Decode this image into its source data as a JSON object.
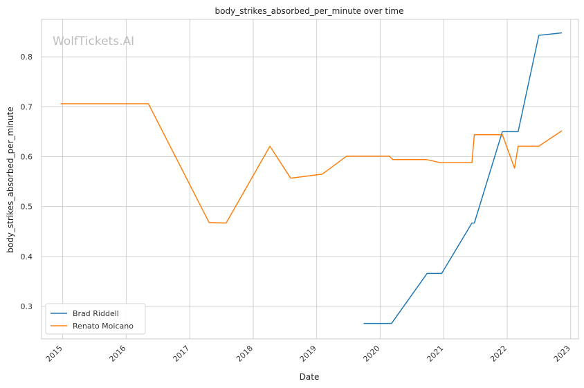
{
  "watermark": "WolfTickets.AI",
  "chart_data": {
    "type": "line",
    "title": "body_strikes_absorbed_per_minute over time",
    "xlabel": "Date",
    "ylabel": "body_strikes_absorbed_per_minute",
    "x_type": "date",
    "xlim": [
      "2014-09-01",
      "2023-02-15"
    ],
    "ylim": [
      0.235,
      0.875
    ],
    "x_ticks": [
      "2015-01-01",
      "2016-01-01",
      "2017-01-01",
      "2018-01-01",
      "2019-01-01",
      "2020-01-01",
      "2021-01-01",
      "2022-01-01",
      "2023-01-01"
    ],
    "x_tick_labels": [
      "2015",
      "2016",
      "2017",
      "2018",
      "2019",
      "2020",
      "2021",
      "2022",
      "2023"
    ],
    "y_ticks": [
      0.3,
      0.4,
      0.5,
      0.6,
      0.7,
      0.8
    ],
    "y_tick_labels": [
      "0.3",
      "0.4",
      "0.5",
      "0.6",
      "0.7",
      "0.8"
    ],
    "grid": true,
    "legend_position": "lower-left",
    "series": [
      {
        "name": "Brad Riddell",
        "color": "#1f77b4",
        "points": [
          {
            "x": "2019-09-28",
            "y": 0.266
          },
          {
            "x": "2020-03-07",
            "y": 0.266
          },
          {
            "x": "2020-09-27",
            "y": 0.366
          },
          {
            "x": "2020-12-20",
            "y": 0.366
          },
          {
            "x": "2021-06-12",
            "y": 0.467
          },
          {
            "x": "2021-06-26",
            "y": 0.467
          },
          {
            "x": "2021-12-04",
            "y": 0.65
          },
          {
            "x": "2022-03-05",
            "y": 0.65
          },
          {
            "x": "2022-07-02",
            "y": 0.843
          },
          {
            "x": "2022-11-12",
            "y": 0.848
          }
        ]
      },
      {
        "name": "Renato Moicano",
        "color": "#ff7f0e",
        "points": [
          {
            "x": "2014-12-20",
            "y": 0.706
          },
          {
            "x": "2016-05-08",
            "y": 0.706
          },
          {
            "x": "2017-04-22",
            "y": 0.468
          },
          {
            "x": "2017-07-29",
            "y": 0.467
          },
          {
            "x": "2018-04-07",
            "y": 0.621
          },
          {
            "x": "2018-08-04",
            "y": 0.557
          },
          {
            "x": "2019-02-02",
            "y": 0.565
          },
          {
            "x": "2019-06-22",
            "y": 0.601
          },
          {
            "x": "2020-02-23",
            "y": 0.601
          },
          {
            "x": "2020-03-14",
            "y": 0.594
          },
          {
            "x": "2020-09-26",
            "y": 0.594
          },
          {
            "x": "2020-12-12",
            "y": 0.588
          },
          {
            "x": "2021-06-12",
            "y": 0.588
          },
          {
            "x": "2021-06-26",
            "y": 0.644
          },
          {
            "x": "2021-12-04",
            "y": 0.644
          },
          {
            "x": "2022-02-12",
            "y": 0.577
          },
          {
            "x": "2022-03-05",
            "y": 0.621
          },
          {
            "x": "2022-07-02",
            "y": 0.621
          },
          {
            "x": "2022-11-12",
            "y": 0.652
          }
        ]
      }
    ]
  }
}
